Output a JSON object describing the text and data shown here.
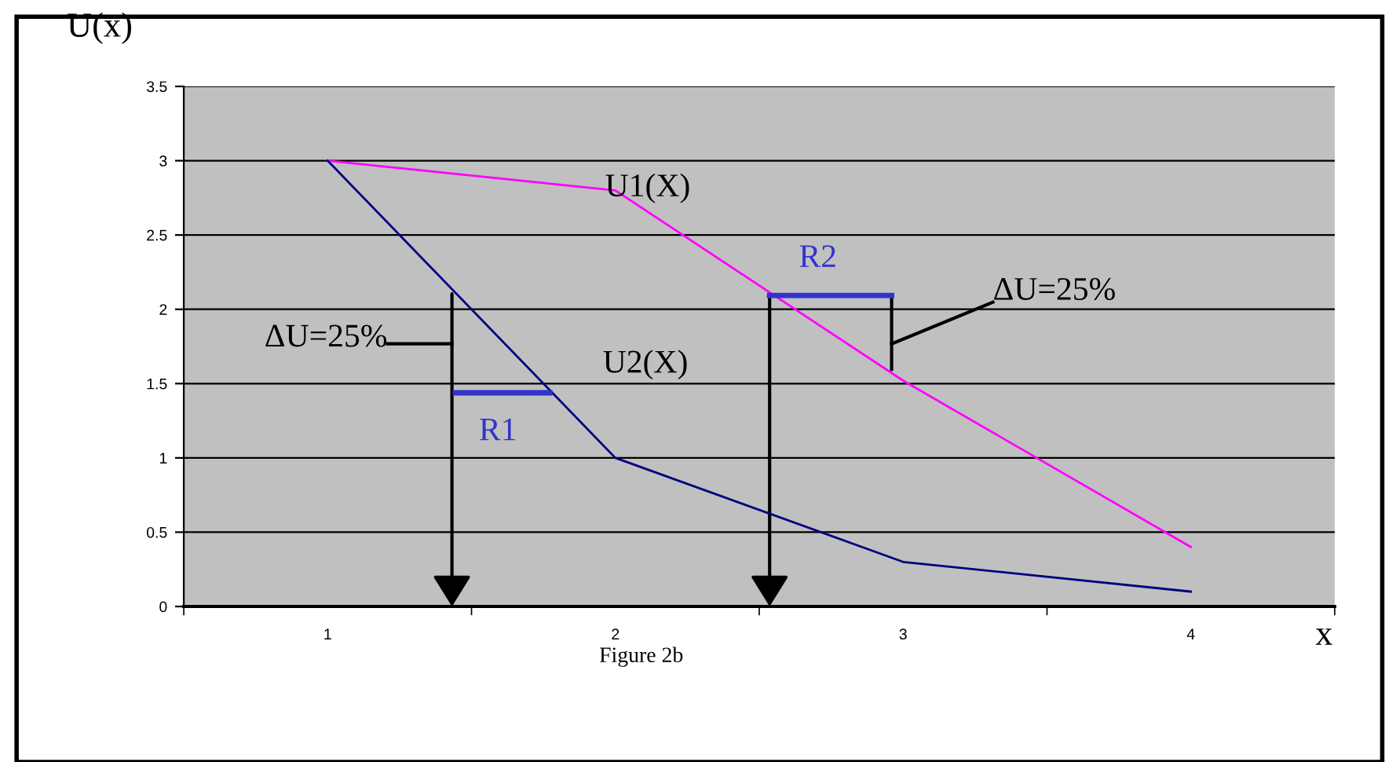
{
  "chart_data": {
    "type": "line",
    "xlabel": "x",
    "ylabel": "U(x)",
    "categories": [
      "1",
      "2",
      "3",
      "4"
    ],
    "series": [
      {
        "name": "U1(X)",
        "color": "#ff00ff",
        "values": [
          3,
          2.8,
          1.52,
          0.4
        ]
      },
      {
        "name": "U2(X)",
        "color": "#000080",
        "values": [
          3,
          1.0,
          0.3,
          0.1
        ]
      }
    ],
    "ylim": [
      0,
      3.5
    ],
    "yticks": [
      0,
      0.5,
      1,
      1.5,
      2,
      2.5,
      3,
      3.5
    ],
    "grid": "y",
    "marker": "none",
    "line_style": "solid",
    "annotations": [
      "ΔU=25%",
      "R1",
      "R2",
      "ΔU=25%",
      "Figure 2b"
    ]
  }
}
